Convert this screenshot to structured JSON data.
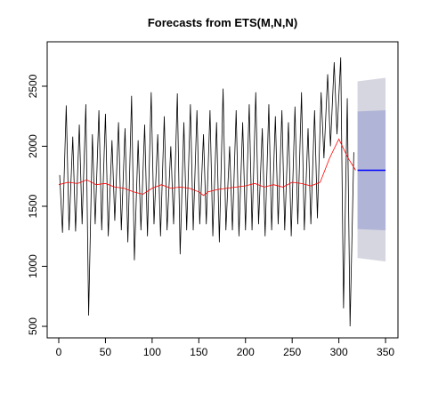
{
  "chart_data": {
    "type": "line",
    "title": "Forecasts from ETS(M,N,N)",
    "xlim": [
      -12.4,
      363.3
    ],
    "ylim": [
      404,
      2870
    ],
    "xticks": [
      0,
      50,
      100,
      150,
      200,
      250,
      300,
      350
    ],
    "yticks": [
      500,
      1000,
      1500,
      2000,
      2500
    ],
    "series": [
      {
        "color": "#000000",
        "x": [
          1,
          4,
          8,
          11,
          15,
          18,
          22,
          25,
          29,
          32,
          36,
          39,
          43,
          46,
          50,
          53,
          57,
          60,
          64,
          67,
          71,
          74,
          78,
          81,
          85,
          88,
          92,
          95,
          99,
          102,
          106,
          109,
          113,
          116,
          120,
          123,
          127,
          130,
          134,
          137,
          141,
          144,
          148,
          151,
          155,
          158,
          162,
          165,
          169,
          172,
          176,
          179,
          183,
          186,
          190,
          193,
          197,
          200,
          204,
          207,
          211,
          214,
          218,
          221,
          225,
          228,
          232,
          235,
          239,
          242,
          246,
          249,
          253,
          256,
          260,
          263,
          267,
          270,
          274,
          277,
          281,
          284,
          288,
          291,
          295,
          298,
          302,
          305,
          309,
          312,
          316
        ],
        "values": [
          1760,
          1280,
          2340,
          1300,
          2080,
          1290,
          2180,
          1350,
          2350,
          590,
          2100,
          1350,
          2300,
          1300,
          2270,
          1250,
          2050,
          1380,
          2200,
          1300,
          2150,
          1200,
          2420,
          1050,
          2050,
          1300,
          2180,
          1250,
          2450,
          1350,
          2100,
          1250,
          2250,
          1300,
          2000,
          1350,
          2440,
          1100,
          2200,
          1300,
          2350,
          1300,
          2300,
          1350,
          2100,
          1350,
          2300,
          1250,
          2200,
          1200,
          2480,
          1300,
          2000,
          1300,
          2300,
          1250,
          2200,
          1300,
          2350,
          1300,
          2450,
          1350,
          2150,
          1250,
          2350,
          1300,
          2250,
          1350,
          2300,
          1300,
          2200,
          1250,
          2330,
          1350,
          2450,
          1300,
          2150,
          1350,
          2300,
          1400,
          2450,
          1900,
          2600,
          2000,
          2700,
          2100,
          2740,
          650,
          2400,
          500,
          1950
        ]
      },
      {
        "color": "#ff0000",
        "x": [
          0,
          10,
          20,
          30,
          40,
          50,
          60,
          70,
          80,
          90,
          100,
          110,
          120,
          130,
          140,
          150,
          155,
          160,
          170,
          180,
          190,
          200,
          210,
          220,
          230,
          240,
          250,
          260,
          270,
          280,
          290,
          300,
          310,
          318
        ],
        "values": [
          1680,
          1700,
          1690,
          1720,
          1680,
          1690,
          1660,
          1650,
          1620,
          1600,
          1650,
          1680,
          1650,
          1660,
          1650,
          1620,
          1590,
          1620,
          1640,
          1650,
          1660,
          1670,
          1690,
          1660,
          1680,
          1660,
          1700,
          1690,
          1670,
          1700,
          1900,
          2060,
          1900,
          1800
        ]
      },
      {
        "color": "#0000ff",
        "x": [
          320,
          350
        ],
        "values": [
          1800,
          1800
        ]
      }
    ],
    "intervals": [
      {
        "color": "#d6d6e0",
        "x": [
          320,
          350
        ],
        "lower": [
          1070,
          1040
        ],
        "upper": [
          2540,
          2570
        ]
      },
      {
        "color": "#b0b4d6",
        "x": [
          320,
          350
        ],
        "lower": [
          1310,
          1300
        ],
        "upper": [
          2290,
          2300
        ]
      }
    ]
  }
}
